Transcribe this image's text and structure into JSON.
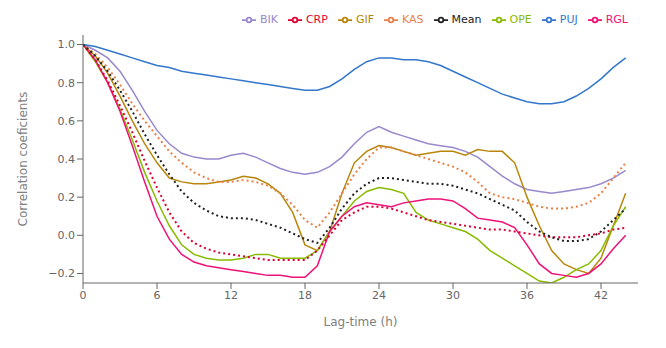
{
  "chart_data": {
    "type": "line",
    "xlabel": "Lag-time (h)",
    "ylabel": "Correlation coeficients",
    "x": [
      0,
      1,
      2,
      3,
      4,
      5,
      6,
      7,
      8,
      9,
      10,
      11,
      12,
      13,
      14,
      15,
      16,
      17,
      18,
      19,
      20,
      21,
      22,
      23,
      24,
      25,
      26,
      27,
      28,
      29,
      30,
      31,
      32,
      33,
      34,
      35,
      36,
      37,
      38,
      39,
      40,
      41,
      42,
      43,
      44
    ],
    "xlim": [
      0,
      45
    ],
    "ylim": [
      -0.25,
      1.05
    ],
    "xticks": [
      0,
      6,
      12,
      18,
      24,
      30,
      36,
      42
    ],
    "yticks": [
      {
        "value": -0.2,
        "label": "−0.2"
      },
      {
        "value": 0.0,
        "label": "0.0"
      },
      0.2,
      0.4,
      0.6,
      0.8,
      {
        "value": 1.0,
        "label": "1.0"
      }
    ],
    "grid": false,
    "legend": "upper right",
    "series": [
      {
        "name": "BIK",
        "color": "#9988cc",
        "line_style": "solid",
        "values": [
          1.0,
          0.97,
          0.93,
          0.86,
          0.76,
          0.65,
          0.55,
          0.48,
          0.43,
          0.41,
          0.4,
          0.4,
          0.42,
          0.43,
          0.41,
          0.38,
          0.35,
          0.33,
          0.32,
          0.33,
          0.36,
          0.41,
          0.48,
          0.54,
          0.57,
          0.54,
          0.52,
          0.5,
          0.48,
          0.47,
          0.46,
          0.44,
          0.41,
          0.36,
          0.31,
          0.27,
          0.24,
          0.23,
          0.22,
          0.23,
          0.24,
          0.25,
          0.27,
          0.3,
          0.34
        ]
      },
      {
        "name": "GIF",
        "color": "#b8860b",
        "line_style": "solid",
        "values": [
          1.0,
          0.94,
          0.85,
          0.73,
          0.6,
          0.48,
          0.38,
          0.3,
          0.28,
          0.27,
          0.27,
          0.28,
          0.29,
          0.31,
          0.3,
          0.27,
          0.22,
          0.12,
          -0.05,
          -0.08,
          0.02,
          0.22,
          0.38,
          0.44,
          0.47,
          0.46,
          0.44,
          0.42,
          0.43,
          0.44,
          0.44,
          0.42,
          0.45,
          0.44,
          0.44,
          0.38,
          0.2,
          0.05,
          -0.08,
          -0.15,
          -0.18,
          -0.2,
          -0.12,
          0.05,
          0.22
        ]
      },
      {
        "name": "OPE",
        "color": "#88bb00",
        "line_style": "solid",
        "values": [
          1.0,
          0.91,
          0.8,
          0.66,
          0.5,
          0.33,
          0.18,
          0.05,
          -0.05,
          -0.1,
          -0.12,
          -0.13,
          -0.13,
          -0.12,
          -0.1,
          -0.1,
          -0.12,
          -0.12,
          -0.12,
          -0.08,
          0.02,
          0.1,
          0.18,
          0.23,
          0.25,
          0.24,
          0.22,
          0.12,
          0.08,
          0.06,
          0.04,
          0.02,
          -0.02,
          -0.08,
          -0.12,
          -0.16,
          -0.2,
          -0.24,
          -0.25,
          -0.22,
          -0.18,
          -0.15,
          -0.08,
          0.05,
          0.15
        ]
      },
      {
        "name": "RGL",
        "color": "#ee1177",
        "line_style": "solid",
        "values": [
          1.0,
          0.92,
          0.8,
          0.65,
          0.47,
          0.28,
          0.1,
          -0.02,
          -0.1,
          -0.14,
          -0.16,
          -0.17,
          -0.18,
          -0.19,
          -0.2,
          -0.21,
          -0.21,
          -0.22,
          -0.22,
          -0.16,
          0.02,
          0.1,
          0.15,
          0.17,
          0.16,
          0.15,
          0.17,
          0.18,
          0.19,
          0.19,
          0.18,
          0.14,
          0.09,
          0.08,
          0.07,
          0.04,
          -0.05,
          -0.15,
          -0.2,
          -0.21,
          -0.22,
          -0.2,
          -0.15,
          -0.07,
          0.0
        ]
      },
      {
        "name": "CRP",
        "color": "#dd0033",
        "line_style": "dotted",
        "values": [
          1.0,
          0.92,
          0.81,
          0.68,
          0.54,
          0.39,
          0.25,
          0.12,
          0.02,
          -0.04,
          -0.07,
          -0.09,
          -0.1,
          -0.11,
          -0.12,
          -0.13,
          -0.13,
          -0.13,
          -0.13,
          -0.08,
          0.0,
          0.08,
          0.12,
          0.15,
          0.15,
          0.14,
          0.12,
          0.1,
          0.08,
          0.07,
          0.06,
          0.05,
          0.04,
          0.03,
          0.03,
          0.02,
          0.01,
          0.0,
          -0.01,
          -0.01,
          -0.01,
          0.0,
          0.01,
          0.03,
          0.04
        ]
      },
      {
        "name": "KAS",
        "color": "#e8824a",
        "line_style": "dotted",
        "values": [
          1.0,
          0.95,
          0.88,
          0.79,
          0.69,
          0.6,
          0.52,
          0.44,
          0.38,
          0.33,
          0.3,
          0.28,
          0.28,
          0.29,
          0.28,
          0.26,
          0.22,
          0.16,
          0.08,
          0.04,
          0.12,
          0.22,
          0.32,
          0.4,
          0.46,
          0.46,
          0.44,
          0.42,
          0.4,
          0.38,
          0.36,
          0.33,
          0.28,
          0.22,
          0.2,
          0.19,
          0.17,
          0.15,
          0.14,
          0.14,
          0.15,
          0.17,
          0.22,
          0.3,
          0.38
        ]
      },
      {
        "name": "PUJ",
        "color": "#3377cc",
        "line_style": "solid",
        "values": [
          1.0,
          0.99,
          0.97,
          0.95,
          0.93,
          0.91,
          0.89,
          0.88,
          0.86,
          0.85,
          0.84,
          0.83,
          0.82,
          0.81,
          0.8,
          0.79,
          0.78,
          0.77,
          0.76,
          0.76,
          0.78,
          0.82,
          0.87,
          0.91,
          0.93,
          0.93,
          0.92,
          0.92,
          0.91,
          0.89,
          0.86,
          0.83,
          0.8,
          0.77,
          0.74,
          0.72,
          0.7,
          0.69,
          0.69,
          0.7,
          0.73,
          0.77,
          0.82,
          0.88,
          0.93
        ]
      },
      {
        "name": "Mean",
        "color": "#222222",
        "line_style": "dotted",
        "values": [
          1.0,
          0.94,
          0.86,
          0.76,
          0.65,
          0.53,
          0.42,
          0.32,
          0.23,
          0.17,
          0.13,
          0.1,
          0.09,
          0.09,
          0.08,
          0.06,
          0.04,
          0.01,
          -0.02,
          -0.04,
          0.04,
          0.14,
          0.22,
          0.27,
          0.3,
          0.3,
          0.29,
          0.28,
          0.27,
          0.27,
          0.26,
          0.24,
          0.22,
          0.19,
          0.16,
          0.13,
          0.07,
          0.02,
          -0.01,
          -0.03,
          -0.03,
          -0.02,
          0.02,
          0.08,
          0.14
        ]
      }
    ]
  }
}
